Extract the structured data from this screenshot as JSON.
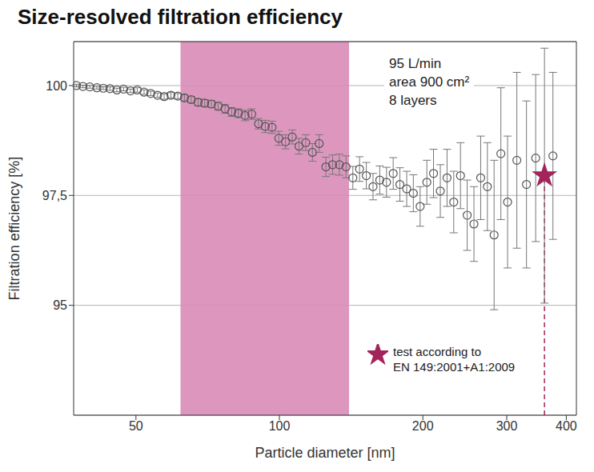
{
  "chart_data": {
    "type": "scatter",
    "title": "Size-resolved filtration efficiency",
    "x_label": "Particle diameter  [nm]",
    "y_label": "Filtration efficiency [%]",
    "annotations": [
      "95 L/min",
      "area 900 cm²",
      "8 layers"
    ],
    "shaded_region": {
      "x": [
        62,
        140
      ],
      "color": "#d98cb8"
    },
    "log": "x",
    "grid": true,
    "xlim": [
      37,
      420
    ],
    "xticks": [
      50,
      100,
      200,
      300,
      400
    ],
    "ylim": [
      92.5,
      101
    ],
    "yticks": [
      95,
      {
        "value": 97.5,
        "label": "97,5"
      },
      100
    ],
    "legend": "lower right",
    "series": [
      {
        "marker": "circle",
        "color": "#555555",
        "x": [
          37.5,
          38.7,
          40,
          41.4,
          42.7,
          44.1,
          45.6,
          47.1,
          48.7,
          50.3,
          52,
          53.7,
          55.5,
          57.3,
          59.2,
          61.2,
          63.2,
          65.3,
          67.5,
          69.7,
          72,
          74.4,
          76.9,
          79.4,
          82,
          84.7,
          87.5,
          90.4,
          93.4,
          96.5,
          99.7,
          103,
          106.4,
          109.9,
          113.6,
          117.3,
          121.2,
          125.2,
          129.3,
          133.6,
          138,
          142.6,
          147.3,
          152.2,
          157.2,
          162.4,
          167.8,
          173.3,
          179,
          185,
          191,
          197.4,
          203.9,
          210.6,
          217.6,
          224.8,
          232.2,
          239.9,
          247.8,
          256,
          264.5,
          273.2,
          282.2,
          291.6,
          301.2,
          315,
          330,
          345,
          375
        ],
        "values": [
          100.0,
          99.98,
          99.97,
          99.95,
          99.94,
          99.93,
          99.9,
          99.92,
          99.88,
          99.9,
          99.85,
          99.82,
          99.78,
          99.75,
          99.78,
          99.76,
          99.72,
          99.68,
          99.62,
          99.6,
          99.58,
          99.53,
          99.47,
          99.4,
          99.37,
          99.32,
          99.35,
          99.13,
          99.07,
          99.05,
          98.8,
          98.72,
          98.83,
          98.62,
          98.7,
          98.48,
          98.68,
          98.15,
          98.2,
          98.2,
          98.15,
          97.9,
          98.1,
          97.95,
          97.7,
          97.85,
          97.8,
          98.0,
          97.75,
          97.65,
          97.55,
          97.25,
          97.8,
          98.0,
          97.6,
          97.9,
          97.35,
          97.95,
          97.05,
          96.85,
          97.9,
          97.7,
          96.6,
          98.45,
          97.35,
          98.3,
          97.75,
          98.35,
          98.4
        ],
        "errors": [
          0.03,
          0.03,
          0.03,
          0.03,
          0.03,
          0.04,
          0.04,
          0.04,
          0.04,
          0.05,
          0.05,
          0.05,
          0.05,
          0.06,
          0.06,
          0.06,
          0.07,
          0.07,
          0.08,
          0.08,
          0.08,
          0.09,
          0.1,
          0.1,
          0.1,
          0.12,
          0.12,
          0.12,
          0.14,
          0.14,
          0.16,
          0.16,
          0.16,
          0.18,
          0.18,
          0.2,
          0.2,
          0.22,
          0.22,
          0.24,
          0.25,
          0.26,
          0.28,
          0.3,
          0.3,
          0.32,
          0.34,
          0.36,
          0.38,
          0.4,
          0.42,
          0.45,
          0.5,
          0.55,
          0.6,
          0.65,
          0.7,
          0.75,
          0.8,
          0.85,
          0.95,
          1.0,
          1.7,
          1.5,
          1.5,
          2.0,
          1.9,
          1.9,
          1.9
        ]
      },
      {
        "name": "test according to EN 149:2001+A1:2009",
        "marker": "star",
        "line_style": "dashed",
        "color": "#a3245a",
        "x": [
          360
        ],
        "values": [
          97.95
        ],
        "errors": [
          2.9
        ]
      }
    ]
  }
}
